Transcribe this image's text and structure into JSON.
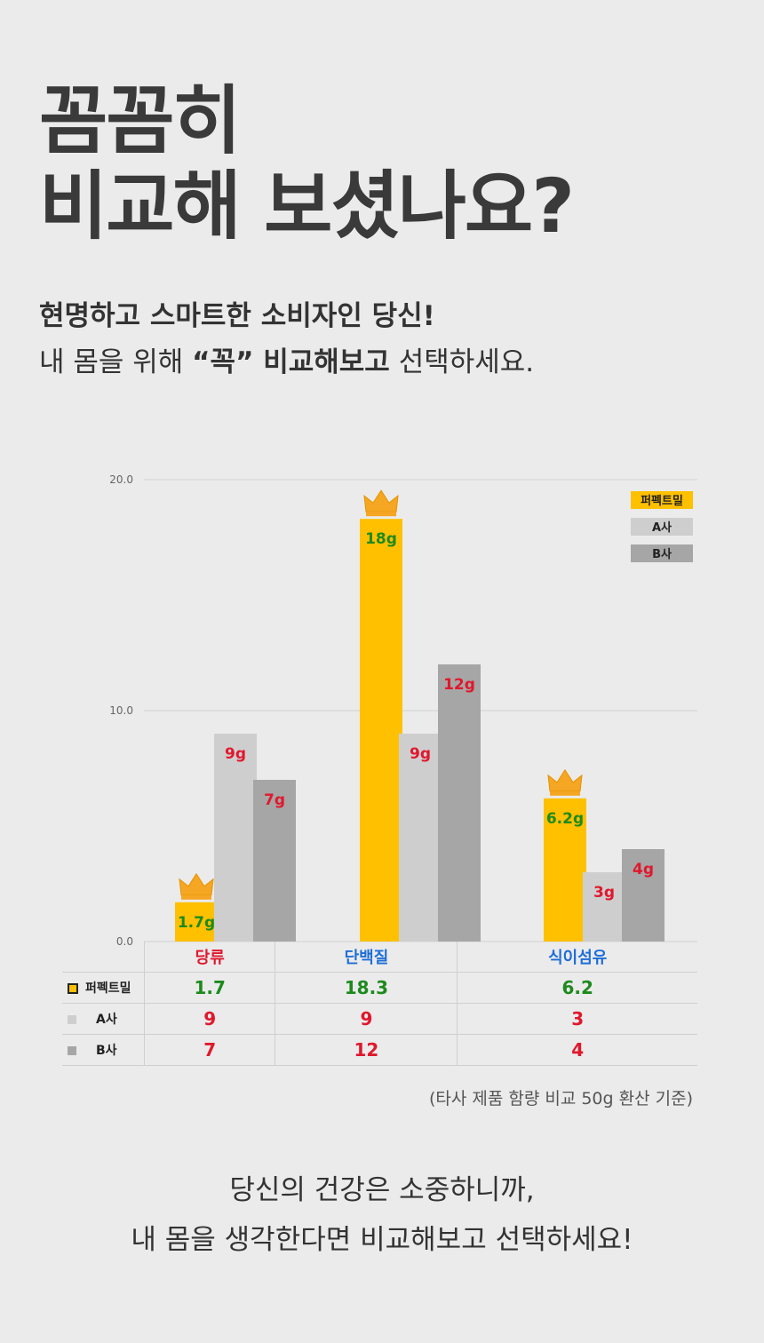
{
  "headline": {
    "line1": "꼼꼼히",
    "line2": "비교해 보셨나요?"
  },
  "intro": {
    "line1": "현명하고 스마트한 소비자인 당신!",
    "line2_pre": "내 몸을 위해 ",
    "line2_quote": "“꼭” 비교해보고",
    "line2_post": " 선택하세요."
  },
  "chart_data": {
    "type": "bar",
    "categories": [
      "당류",
      "단백질",
      "식이섬유"
    ],
    "series": [
      {
        "name": "퍼펙트밀",
        "color": "#ffc000",
        "values": [
          1.7,
          18.3,
          6.2
        ],
        "labels": [
          "1.7g",
          "18g",
          "6.2g"
        ]
      },
      {
        "name": "A사",
        "color": "#cfcecf",
        "values": [
          9,
          9,
          3
        ],
        "labels": [
          "9g",
          "9g",
          "3g"
        ]
      },
      {
        "name": "B사",
        "color": "#a6a6a6",
        "values": [
          7,
          12,
          4
        ],
        "labels": [
          "7g",
          "12g",
          "4g"
        ]
      }
    ],
    "ylim": [
      0,
      20
    ],
    "yticks": [
      "0.0",
      "10.0",
      "20.0"
    ],
    "legend_position": "top-right",
    "crown_on": "퍼펙트밀",
    "label_colors": {
      "winner": "#1d8a1d",
      "other": "#e0182d"
    }
  },
  "table": {
    "header": [
      "당류",
      "단백질",
      "식이섬유"
    ],
    "rows": [
      {
        "name": "퍼펙트밀",
        "values": [
          "1.7",
          "18.3",
          "6.2"
        ]
      },
      {
        "name": "A사",
        "values": [
          "9",
          "9",
          "3"
        ]
      },
      {
        "name": "B사",
        "values": [
          "7",
          "12",
          "4"
        ]
      }
    ]
  },
  "note": "(타사 제품 함량 비교 50g 환산 기준)",
  "closing": {
    "line1": "당신의 건강은 소중하니까,",
    "line2": "내 몸을 생각한다면 비교해보고 선택하세요!"
  }
}
